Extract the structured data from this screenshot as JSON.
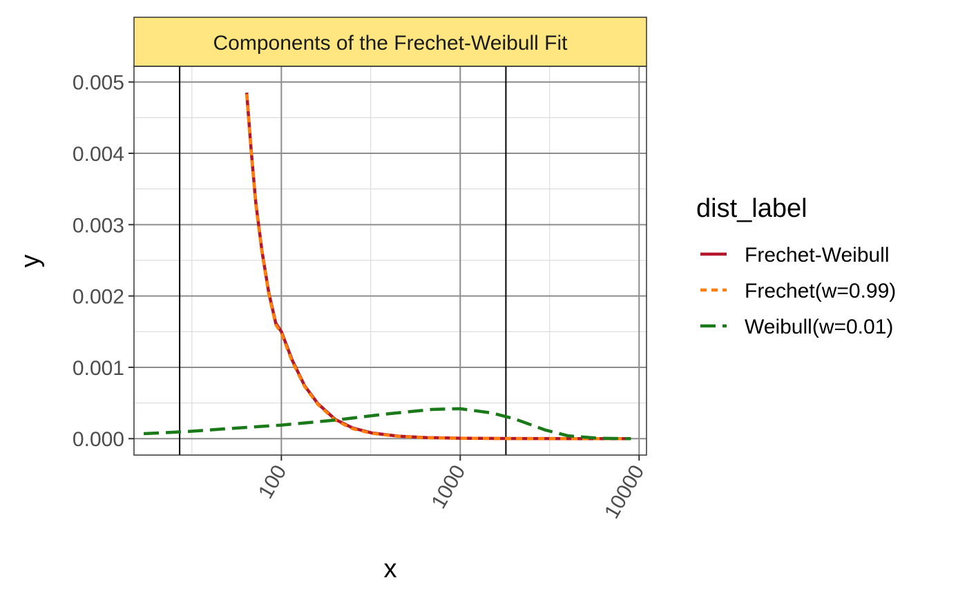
{
  "chart_data": {
    "type": "line",
    "title": "Components of the Frechet-Weibull Fit",
    "xlabel": "x",
    "ylabel": "y",
    "x_scale": "log10",
    "xlim": [
      15,
      11000
    ],
    "ylim": [
      -0.00023,
      0.00522
    ],
    "x_ticks": [
      100,
      1000,
      10000
    ],
    "x_tick_labels": [
      "100",
      "1000",
      "10000"
    ],
    "y_ticks": [
      0,
      0.001,
      0.002,
      0.003,
      0.004,
      0.005
    ],
    "y_tick_labels": [
      "0.000",
      "0.001",
      "0.002",
      "0.003",
      "0.004",
      "0.005"
    ],
    "x_minor_ticks": [
      31.6,
      316,
      3160
    ],
    "y_minor_ticks": [
      0.0005,
      0.0015,
      0.0025,
      0.0035,
      0.0045
    ],
    "grid": true,
    "legend": {
      "title": "dist_label",
      "position": "right",
      "entries": [
        "Frechet-Weibull",
        "Frechet(w=0.99)",
        "Weibull(w=0.01)"
      ]
    },
    "vlines": [
      27,
      1800
    ],
    "series": [
      {
        "name": "Frechet-Weibull",
        "color": "#B2182B",
        "dash": "solid",
        "x": [
          64,
          68,
          72,
          78,
          85,
          93,
          100,
          115,
          135,
          160,
          200,
          250,
          320,
          450,
          650,
          1000,
          1800,
          3000,
          5000,
          9000
        ],
        "y": [
          0.00485,
          0.004,
          0.0033,
          0.00262,
          0.00205,
          0.00162,
          0.0015,
          0.0011,
          0.00074,
          0.00049,
          0.00027,
          0.00015,
          8e-05,
          3.5e-05,
          1.5e-05,
          6e-06,
          2e-06,
          8e-07,
          3e-07,
          1e-07
        ]
      },
      {
        "name": "Frechet(w=0.99)",
        "color": "#FF7F0E",
        "dash": "dotted",
        "x": [
          64,
          68,
          72,
          78,
          85,
          93,
          100,
          115,
          135,
          160,
          200,
          250,
          320,
          450,
          650,
          1000,
          1800,
          3000,
          5000,
          9000
        ],
        "y": [
          0.00483,
          0.00398,
          0.00328,
          0.0026,
          0.00203,
          0.0016,
          0.00148,
          0.00108,
          0.00073,
          0.00048,
          0.00026,
          0.00014,
          7.5e-05,
          3.2e-05,
          1.3e-05,
          5e-06,
          1.8e-06,
          7e-07,
          3e-07,
          1e-07
        ]
      },
      {
        "name": "Weibull(w=0.01)",
        "color": "#1A7A1A",
        "dash": "dashed",
        "x": [
          17,
          30,
          50,
          100,
          200,
          400,
          700,
          1000,
          1500,
          2000,
          3000,
          4000,
          6000,
          9000
        ],
        "y": [
          7e-05,
          0.0001,
          0.00014,
          0.00019,
          0.00026,
          0.00035,
          0.00041,
          0.00042,
          0.00036,
          0.00028,
          0.00012,
          4e-05,
          5e-06,
          5e-07
        ]
      }
    ]
  }
}
